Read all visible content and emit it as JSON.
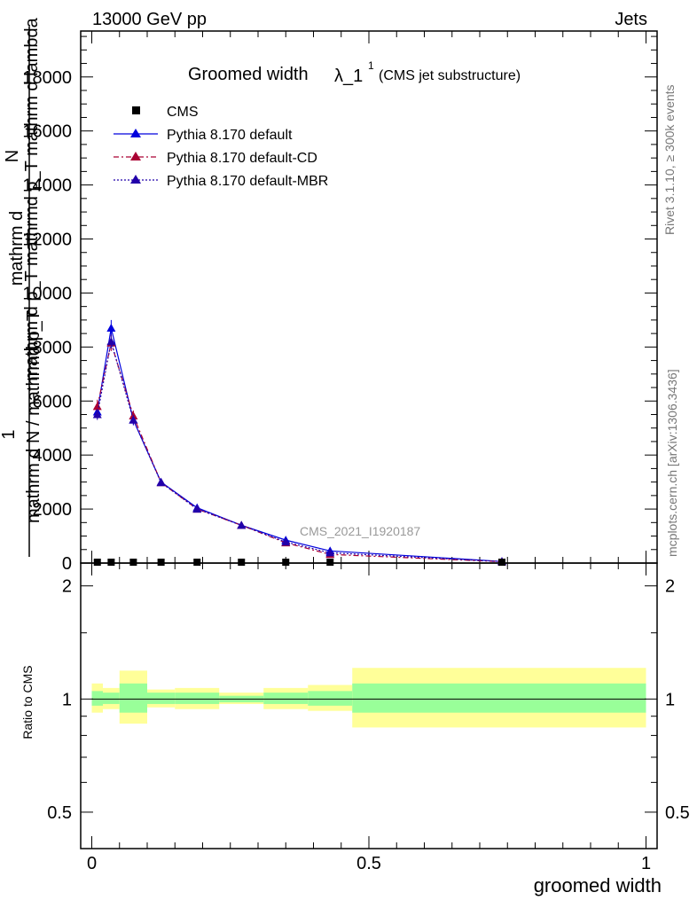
{
  "header": {
    "energy_label": "13000 GeV pp",
    "process_label": "Jets",
    "title_main": "Groomed width",
    "title_lambda": "λ_1",
    "title_sup": "1",
    "title_sub": "(CMS jet substructure)",
    "ylabel_num": "mathrm d",
    "ylabel_num2": "N",
    "ylabel_den": "mathrm d p_T mathrmd p_T mathrm d lambda",
    "ylabel_one": "1",
    "ylabel_left": "mathrm d N / mathrmd p_T",
    "watermark": "CMS_2021_I1920187",
    "side_top": "Rivet 3.1.10, ≥ 300k events",
    "side_bottom": "mcplots.cern.ch [arXiv:1306.3436]"
  },
  "legend": [
    {
      "label": "CMS",
      "color": "#000000",
      "marker": "square",
      "style": "none"
    },
    {
      "label": "Pythia 8.170 default",
      "color": "#0000dd",
      "marker": "triangle",
      "style": "solid"
    },
    {
      "label": "Pythia 8.170 default-CD",
      "color": "#aa0033",
      "marker": "triangle",
      "style": "dashdot"
    },
    {
      "label": "Pythia 8.170 default-MBR",
      "color": "#2200aa",
      "marker": "triangle",
      "style": "dotted"
    }
  ],
  "chart_data": {
    "type": "line",
    "main": {
      "xlim": [
        -0.02,
        1.02
      ],
      "ylim": [
        0,
        19700
      ],
      "yticks": [
        0,
        2000,
        4000,
        6000,
        8000,
        10000,
        12000,
        14000,
        16000,
        18000
      ],
      "ytick_labels": [
        "0",
        "2000",
        "4000",
        "6000",
        "8000",
        "10000",
        "12000",
        "14000",
        "16000",
        "18000"
      ],
      "x": [
        0.01,
        0.035,
        0.075,
        0.125,
        0.19,
        0.27,
        0.35,
        0.43,
        0.74
      ],
      "series": [
        {
          "name": "CMS",
          "values": [
            0,
            0,
            0,
            0,
            0,
            0,
            0,
            0,
            0
          ]
        },
        {
          "name": "Pythia 8.170 default",
          "values": [
            5600,
            8700,
            5300,
            3000,
            2050,
            1400,
            850,
            450,
            60
          ],
          "err": [
            250,
            300,
            200,
            100,
            80,
            60,
            50,
            40,
            20
          ]
        },
        {
          "name": "Pythia 8.170 default-CD",
          "values": [
            5800,
            8150,
            5450,
            2980,
            2000,
            1400,
            750,
            320,
            50
          ],
          "err": [
            250,
            300,
            200,
            100,
            80,
            60,
            50,
            40,
            20
          ]
        },
        {
          "name": "Pythia 8.170 default-MBR",
          "values": [
            5500,
            8200,
            5300,
            2980,
            2000,
            1400,
            780,
            380,
            55
          ],
          "err": [
            200,
            250,
            180,
            90,
            70,
            50,
            40,
            30,
            15
          ]
        }
      ]
    },
    "ratio": {
      "ylabel": "Ratio to CMS",
      "ylim": [
        0.4,
        2.3
      ],
      "log": true,
      "yticks": [
        0.5,
        1,
        2
      ],
      "ytick_labels": [
        "0.5",
        "1",
        "2"
      ],
      "xticks": [
        0,
        0.5,
        1
      ],
      "xtick_labels": [
        "0",
        "0.5",
        "1"
      ],
      "xlabel": "groomed width",
      "bins": [
        {
          "lo": 0.0,
          "hi": 0.02,
          "green": [
            0.96,
            1.05
          ],
          "yellow": [
            0.92,
            1.1
          ]
        },
        {
          "lo": 0.02,
          "hi": 0.05,
          "green": [
            0.97,
            1.04
          ],
          "yellow": [
            0.94,
            1.07
          ]
        },
        {
          "lo": 0.05,
          "hi": 0.1,
          "green": [
            0.92,
            1.1
          ],
          "yellow": [
            0.86,
            1.19
          ]
        },
        {
          "lo": 0.1,
          "hi": 0.15,
          "green": [
            0.97,
            1.04
          ],
          "yellow": [
            0.95,
            1.06
          ]
        },
        {
          "lo": 0.15,
          "hi": 0.23,
          "green": [
            0.97,
            1.04
          ],
          "yellow": [
            0.94,
            1.07
          ]
        },
        {
          "lo": 0.23,
          "hi": 0.31,
          "green": [
            0.98,
            1.02
          ],
          "yellow": [
            0.97,
            1.04
          ]
        },
        {
          "lo": 0.31,
          "hi": 0.39,
          "green": [
            0.97,
            1.04
          ],
          "yellow": [
            0.94,
            1.07
          ]
        },
        {
          "lo": 0.39,
          "hi": 0.47,
          "green": [
            0.96,
            1.05
          ],
          "yellow": [
            0.93,
            1.09
          ]
        },
        {
          "lo": 0.47,
          "hi": 1.0,
          "green": [
            0.92,
            1.1
          ],
          "yellow": [
            0.84,
            1.21
          ]
        }
      ]
    }
  }
}
